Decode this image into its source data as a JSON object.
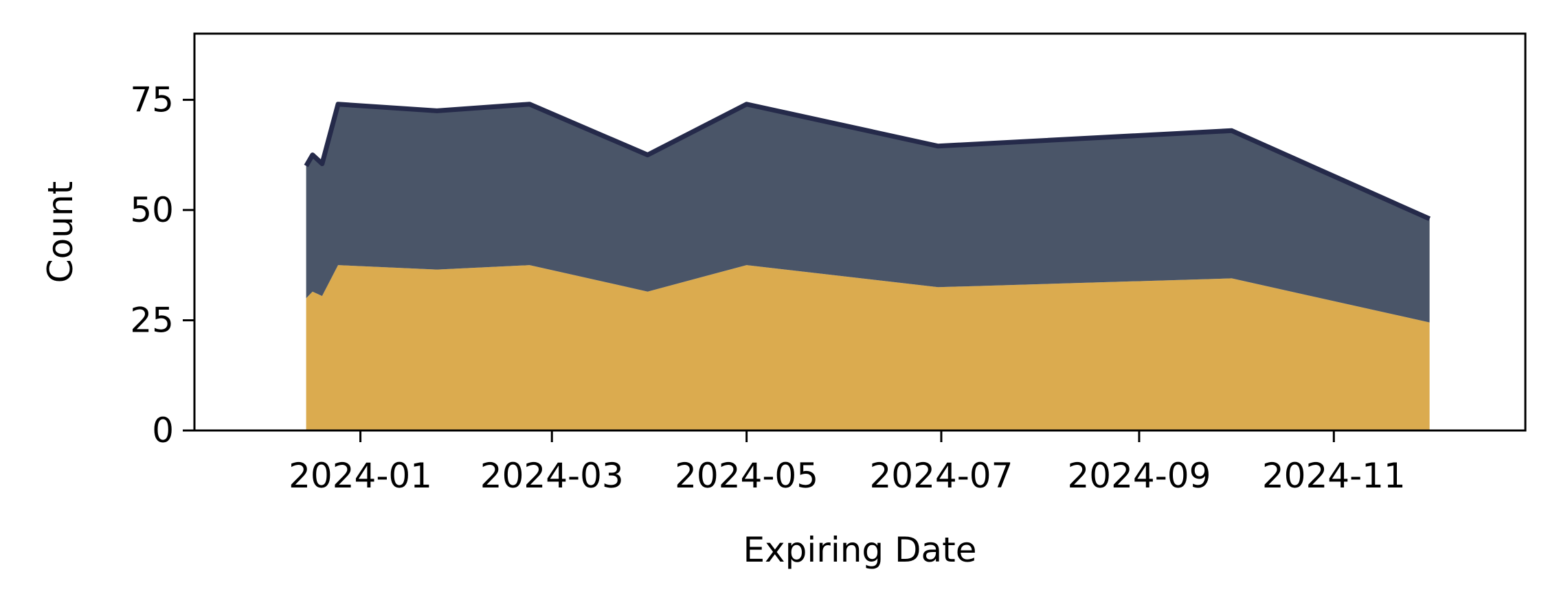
{
  "chart_data": {
    "type": "area",
    "stacked": true,
    "title": "",
    "xlabel": "Expiring Date",
    "ylabel": "Count",
    "x_type": "date",
    "xlim": [
      "2023-11-10",
      "2024-12-31"
    ],
    "ylim": [
      0,
      90
    ],
    "grid": false,
    "legend": "none",
    "x": [
      "2023-12-15",
      "2023-12-17",
      "2023-12-20",
      "2023-12-25",
      "2024-01-25",
      "2024-02-23",
      "2024-03-31",
      "2024-05-01",
      "2024-06-30",
      "2024-09-30",
      "2024-12-01"
    ],
    "series": [
      {
        "values": [
          30,
          31.5,
          30.5,
          37.5,
          36.5,
          37.5,
          31.5,
          37.5,
          32.5,
          34.5,
          24.5
        ],
        "color": "#dbab4f"
      },
      {
        "values": [
          30,
          31,
          30,
          36.5,
          36,
          36.5,
          31,
          36.5,
          32,
          33.5,
          23.5
        ],
        "color": "#4a5568"
      }
    ],
    "total_line_color": "#252a4a",
    "x_ticks": [
      "2024-01",
      "2024-03",
      "2024-05",
      "2024-07",
      "2024-09",
      "2024-11"
    ],
    "y_ticks": [
      0,
      25,
      50,
      75
    ]
  }
}
